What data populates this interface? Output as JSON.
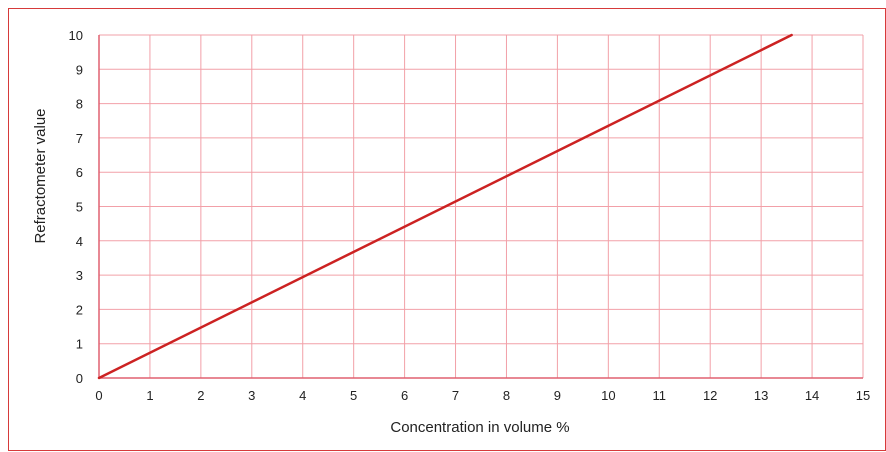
{
  "chart_data": {
    "type": "line",
    "title": "",
    "xlabel": "Concentration in volume %",
    "ylabel": "Refractometer value",
    "xlim": [
      0,
      15
    ],
    "ylim": [
      0,
      10
    ],
    "xticks": [
      "0",
      "1",
      "2",
      "3",
      "4",
      "5",
      "6",
      "7",
      "8",
      "9",
      "10",
      "11",
      "12",
      "13",
      "14",
      "15"
    ],
    "yticks": [
      "0",
      "1",
      "2",
      "3",
      "4",
      "5",
      "6",
      "7",
      "8",
      "9",
      "10"
    ],
    "grid": true,
    "series": [
      {
        "x": [
          0,
          13.6
        ],
        "y": [
          0,
          10
        ],
        "color": "#cc2222"
      }
    ]
  },
  "colors": {
    "border": "#d63a3a",
    "grid": "#f2a0a8",
    "axis": "#e06070",
    "line": "#cc2222"
  }
}
